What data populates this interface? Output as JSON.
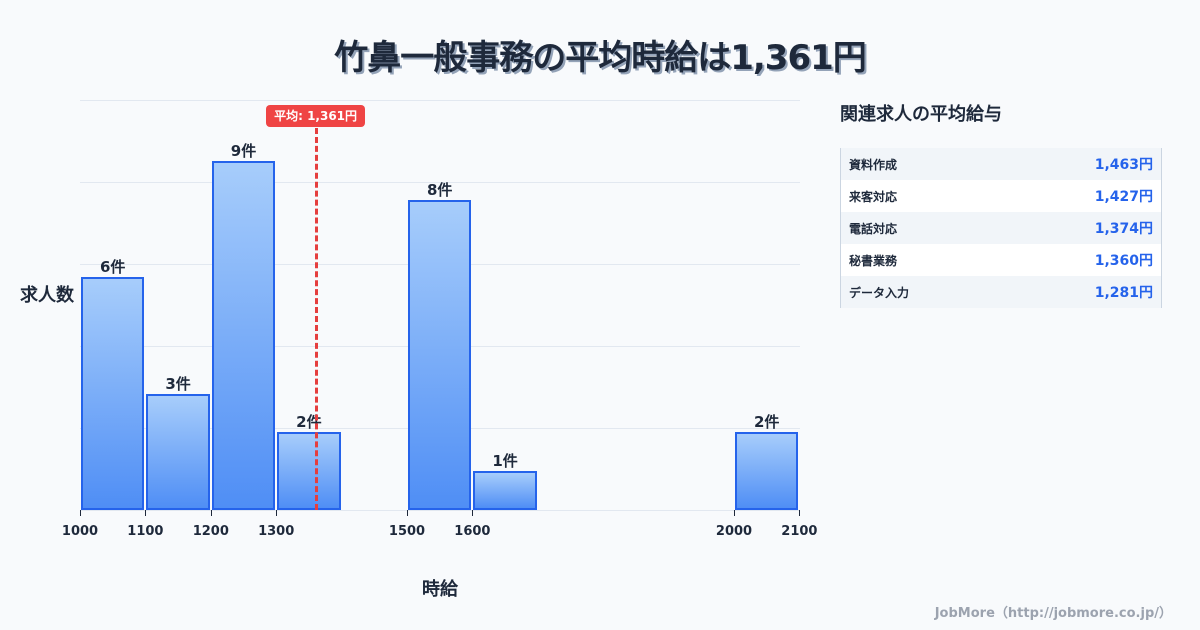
{
  "title": "竹鼻一般事務の平均時給は1,361円",
  "chart_data": {
    "type": "bar",
    "title": "竹鼻一般事務の平均時給は1,361円",
    "xlabel": "時給",
    "ylabel": "求人数",
    "bins": [
      {
        "range": [
          1000,
          1100
        ],
        "count": 6,
        "label": "6件"
      },
      {
        "range": [
          1100,
          1200
        ],
        "count": 3,
        "label": "3件"
      },
      {
        "range": [
          1200,
          1300
        ],
        "count": 9,
        "label": "9件"
      },
      {
        "range": [
          1300,
          1400
        ],
        "count": 2,
        "label": "2件"
      },
      {
        "range": [
          1500,
          1600
        ],
        "count": 8,
        "label": "8件"
      },
      {
        "range": [
          1600,
          1700
        ],
        "count": 1,
        "label": "1件"
      },
      {
        "range": [
          2000,
          2100
        ],
        "count": 2,
        "label": "2件"
      }
    ],
    "categories": [
      "1000-1100",
      "1100-1200",
      "1200-1300",
      "1300-1400",
      "1500-1600",
      "1600-1700",
      "2000-2100"
    ],
    "values": [
      6,
      3,
      9,
      2,
      8,
      1,
      2
    ],
    "x_ticks": [
      "1000",
      "1100",
      "1200",
      "1300",
      "1500",
      "1600",
      "2000",
      "2100"
    ],
    "xlim": [
      1000,
      2100
    ],
    "ylim": [
      0,
      10.6
    ],
    "grid": true,
    "average": {
      "value": 1361,
      "label": "平均: 1,361円"
    }
  },
  "related": {
    "title": "関連求人の平均給与",
    "rows": [
      {
        "name": "資料作成",
        "value": "1,463円"
      },
      {
        "name": "来客対応",
        "value": "1,427円"
      },
      {
        "name": "電話対応",
        "value": "1,374円"
      },
      {
        "name": "秘書業務",
        "value": "1,360円"
      },
      {
        "name": "データ入力",
        "value": "1,281円"
      }
    ]
  },
  "footer": "JobMore（http://jobmore.co.jp/）",
  "colors": {
    "bar_border": "#2563eb",
    "bar_top": "#a7cdfb",
    "bar_bottom": "#4f8ef5",
    "average_line": "#e53e3e",
    "value_text": "#2563eb"
  }
}
